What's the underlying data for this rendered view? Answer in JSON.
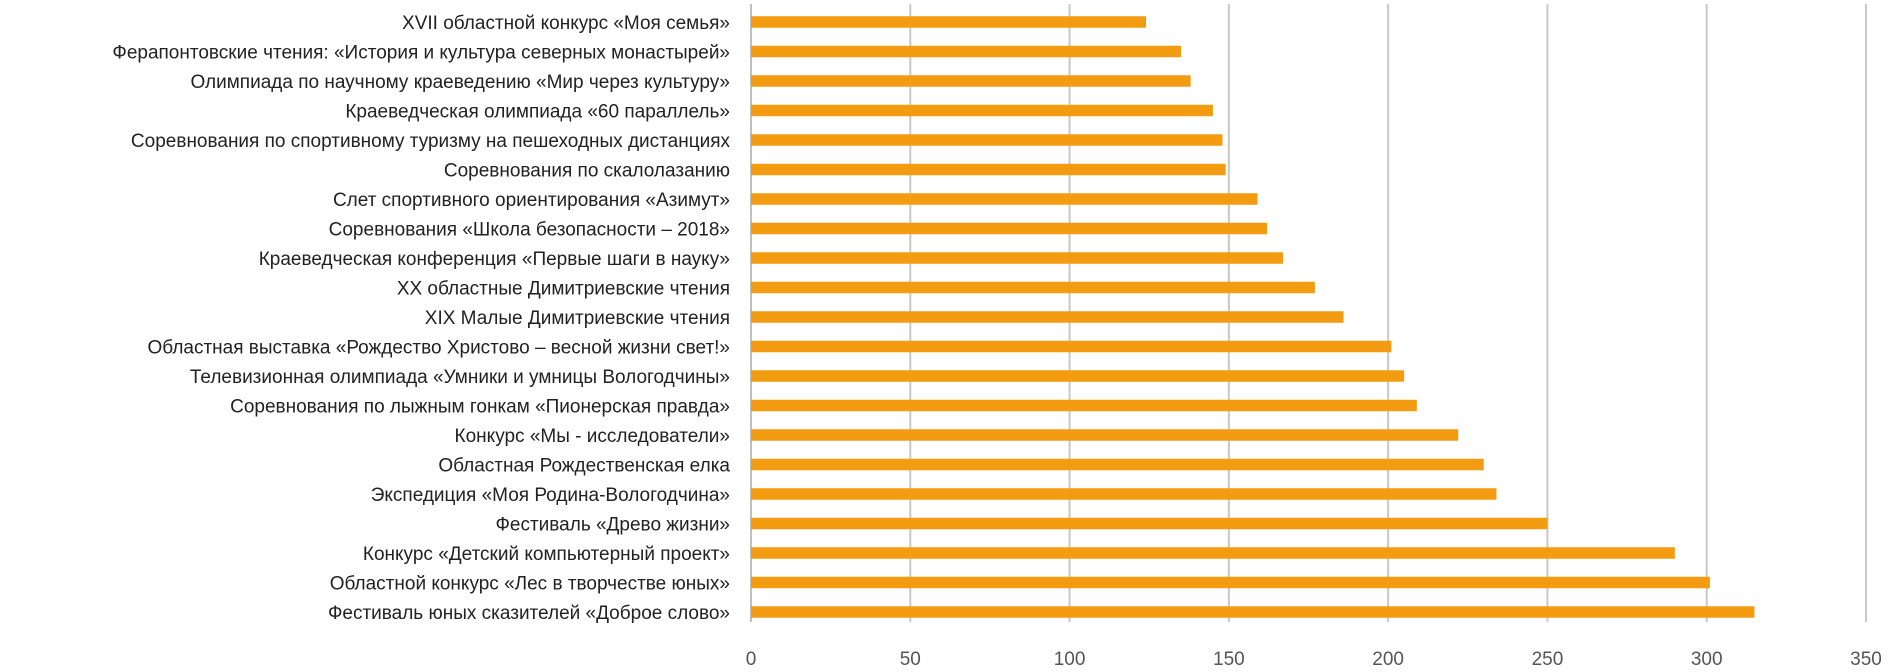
{
  "chart_data": {
    "type": "bar",
    "orientation": "horizontal",
    "title": "",
    "xlabel": "",
    "ylabel": "",
    "xlim": [
      0,
      350
    ],
    "x_ticks": [
      0,
      50,
      100,
      150,
      200,
      250,
      300,
      350
    ],
    "x_tick_labels": [
      "0",
      "50",
      "100",
      "150",
      "200",
      "250",
      "300",
      "350"
    ],
    "grid": true,
    "legend": "none",
    "colors": {
      "bar": "#F39C12",
      "grid": "#C8C8C8",
      "axis": "#BFBFBF"
    },
    "categories": [
      "XVII областной конкурс «Моя семья»",
      "Ферапонтовские чтения: «История и культура северных монастырей»",
      "Олимпиада по научному краеведению «Мир через культуру»",
      "Краеведческая олимпиада «60 параллель»",
      "Соревнования по спортивному туризму на пешеходных дистанциях",
      "Соревнования по скалолазанию",
      "Слет спортивного ориентирования «Азимут»",
      "Соревнования «Школа безопасности – 2018»",
      "Краеведческая конференция «Первые шаги в науку»",
      "XX областные Димитриевские чтения",
      "XIX Малые Димитриевские чтения",
      "Областная выставка «Рождество Христово – весной жизни свет!»",
      "Телевизионная олимпиада «Умники и умницы Вологодчины»",
      "Соревнования по лыжным гонкам «Пионерская правда»",
      "Конкурс «Мы - исследователи»",
      "Областная Рождественская елка",
      "Экспедиция «Моя Родина-Вологодчина»",
      "Фестиваль «Древо жизни»",
      "Конкурс «Детский компьютерный проект»",
      "Областной конкурс «Лес в творчестве юных»",
      "Фестиваль юных сказителей «Доброе слово»"
    ],
    "values": [
      124,
      135,
      138,
      145,
      148,
      149,
      159,
      162,
      167,
      177,
      186,
      201,
      205,
      209,
      222,
      230,
      234,
      250,
      290,
      301,
      315
    ]
  }
}
